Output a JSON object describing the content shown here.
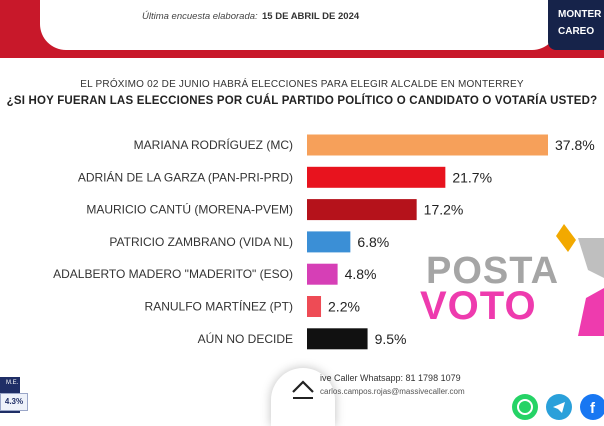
{
  "header": {
    "survey_label": "Última encuesta elaborada:",
    "survey_date": "15 DE ABRIL DE 2024",
    "brand_line1": "MONTER",
    "brand_line2": "CAREO"
  },
  "chart_data": {
    "type": "bar",
    "orientation": "horizontal",
    "title": "EL PRÓXIMO 02 DE JUNIO HABRÁ ELECCIONES PARA ELEGIR ALCALDE EN MONTERREY",
    "subtitle": "¿SI HOY FUERAN LAS ELECCIONES POR CUÁL PARTIDO POLÍTICO O CANDIDATO O VOTARÍA USTED?",
    "categories": [
      "MARIANA RODRÍGUEZ (MC)",
      "ADRIÁN DE LA GARZA (PAN-PRI-PRD)",
      "MAURICIO CANTÚ (MORENA-PVEM)",
      "PATRICIO ZAMBRANO (VIDA NL)",
      "ADALBERTO MADERO \"MADERITO\" (ESO)",
      "RANULFO MARTÍNEZ (PT)",
      "AÚN NO DECIDE"
    ],
    "values": [
      37.8,
      21.7,
      17.2,
      6.8,
      4.8,
      2.2,
      9.5
    ],
    "value_labels": [
      "37.8%",
      "21.7%",
      "17.2%",
      "6.8%",
      "4.8%",
      "2.2%",
      "9.5%"
    ],
    "colors": [
      "#f6a05a",
      "#e8131e",
      "#b5121b",
      "#3b8fd6",
      "#d63fb6",
      "#ee4b55",
      "#111111"
    ],
    "xlim": [
      0,
      40
    ]
  },
  "watermark": {
    "line1": "POSTA",
    "line2": "VOTO"
  },
  "footer": {
    "whatsapp": "ive Caller Whatsapp: 81 1798 1079",
    "email": "carlos.campos.rojas@massivecaller.com",
    "me_label": "M.E.",
    "me_value": "4.3%"
  },
  "icons": {
    "scroll_up": "chevron-up-icon",
    "whatsapp": "whatsapp-icon",
    "telegram": "telegram-icon",
    "facebook": "facebook-icon"
  }
}
